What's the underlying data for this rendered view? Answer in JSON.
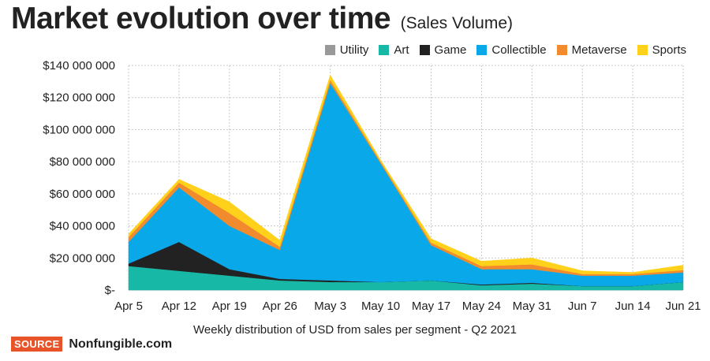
{
  "title": "Market evolution over time",
  "subtitle": "(Sales Volume)",
  "caption": "Weekly distribution of USD from sales per segment - Q2 2021",
  "source": {
    "tag": "SOURCE",
    "name": "Nonfungible.com"
  },
  "chart_data": {
    "type": "area",
    "stacked": true,
    "title": "Market evolution over time",
    "xlabel": "Weekly distribution of USD from sales per segment - Q2 2021",
    "ylabel": "",
    "categories": [
      "Apr 5",
      "Apr 12",
      "Apr 19",
      "Apr 26",
      "May 3",
      "May 10",
      "May 17",
      "May 24",
      "May 31",
      "Jun 7",
      "Jun 14",
      "Jun 21"
    ],
    "ylim": [
      0,
      140000000
    ],
    "yticks": [
      0,
      20000000,
      40000000,
      60000000,
      80000000,
      100000000,
      120000000,
      140000000
    ],
    "ytick_labels": [
      "$-",
      "$20 000 000",
      "$40 000 000",
      "$60 000 000",
      "$80 000 000",
      "$100 000 000",
      "$120 000 000",
      "$140 000 000"
    ],
    "legend_position": "top-right",
    "grid": true,
    "series": [
      {
        "name": "Utility",
        "color": "#999999",
        "values": [
          0,
          0,
          0,
          0,
          0,
          0,
          0,
          0,
          0,
          0,
          0,
          0
        ]
      },
      {
        "name": "Art",
        "color": "#17b8a6",
        "values": [
          15000000,
          12000000,
          9000000,
          6000000,
          5000000,
          5000000,
          6000000,
          3000000,
          4000000,
          2500000,
          2500000,
          5000000
        ]
      },
      {
        "name": "Game",
        "color": "#222222",
        "values": [
          1500000,
          18000000,
          4000000,
          1000000,
          1000000,
          0,
          0,
          500000,
          500000,
          0,
          0,
          0
        ]
      },
      {
        "name": "Collectible",
        "color": "#09a8e8",
        "values": [
          13500000,
          34000000,
          27000000,
          18000000,
          123000000,
          74000000,
          22000000,
          9500000,
          8500000,
          6500000,
          6500000,
          6000000
        ]
      },
      {
        "name": "Metaverse",
        "color": "#f28a2e",
        "values": [
          3000000,
          3000000,
          8000000,
          2000000,
          2000000,
          1000000,
          1500000,
          2000000,
          3000000,
          1000000,
          1000000,
          1500000
        ]
      },
      {
        "name": "Sports",
        "color": "#ffd11a",
        "values": [
          2000000,
          2000000,
          7000000,
          4000000,
          3000000,
          1000000,
          2500000,
          3000000,
          4000000,
          2000000,
          1000000,
          3000000
        ]
      }
    ]
  }
}
